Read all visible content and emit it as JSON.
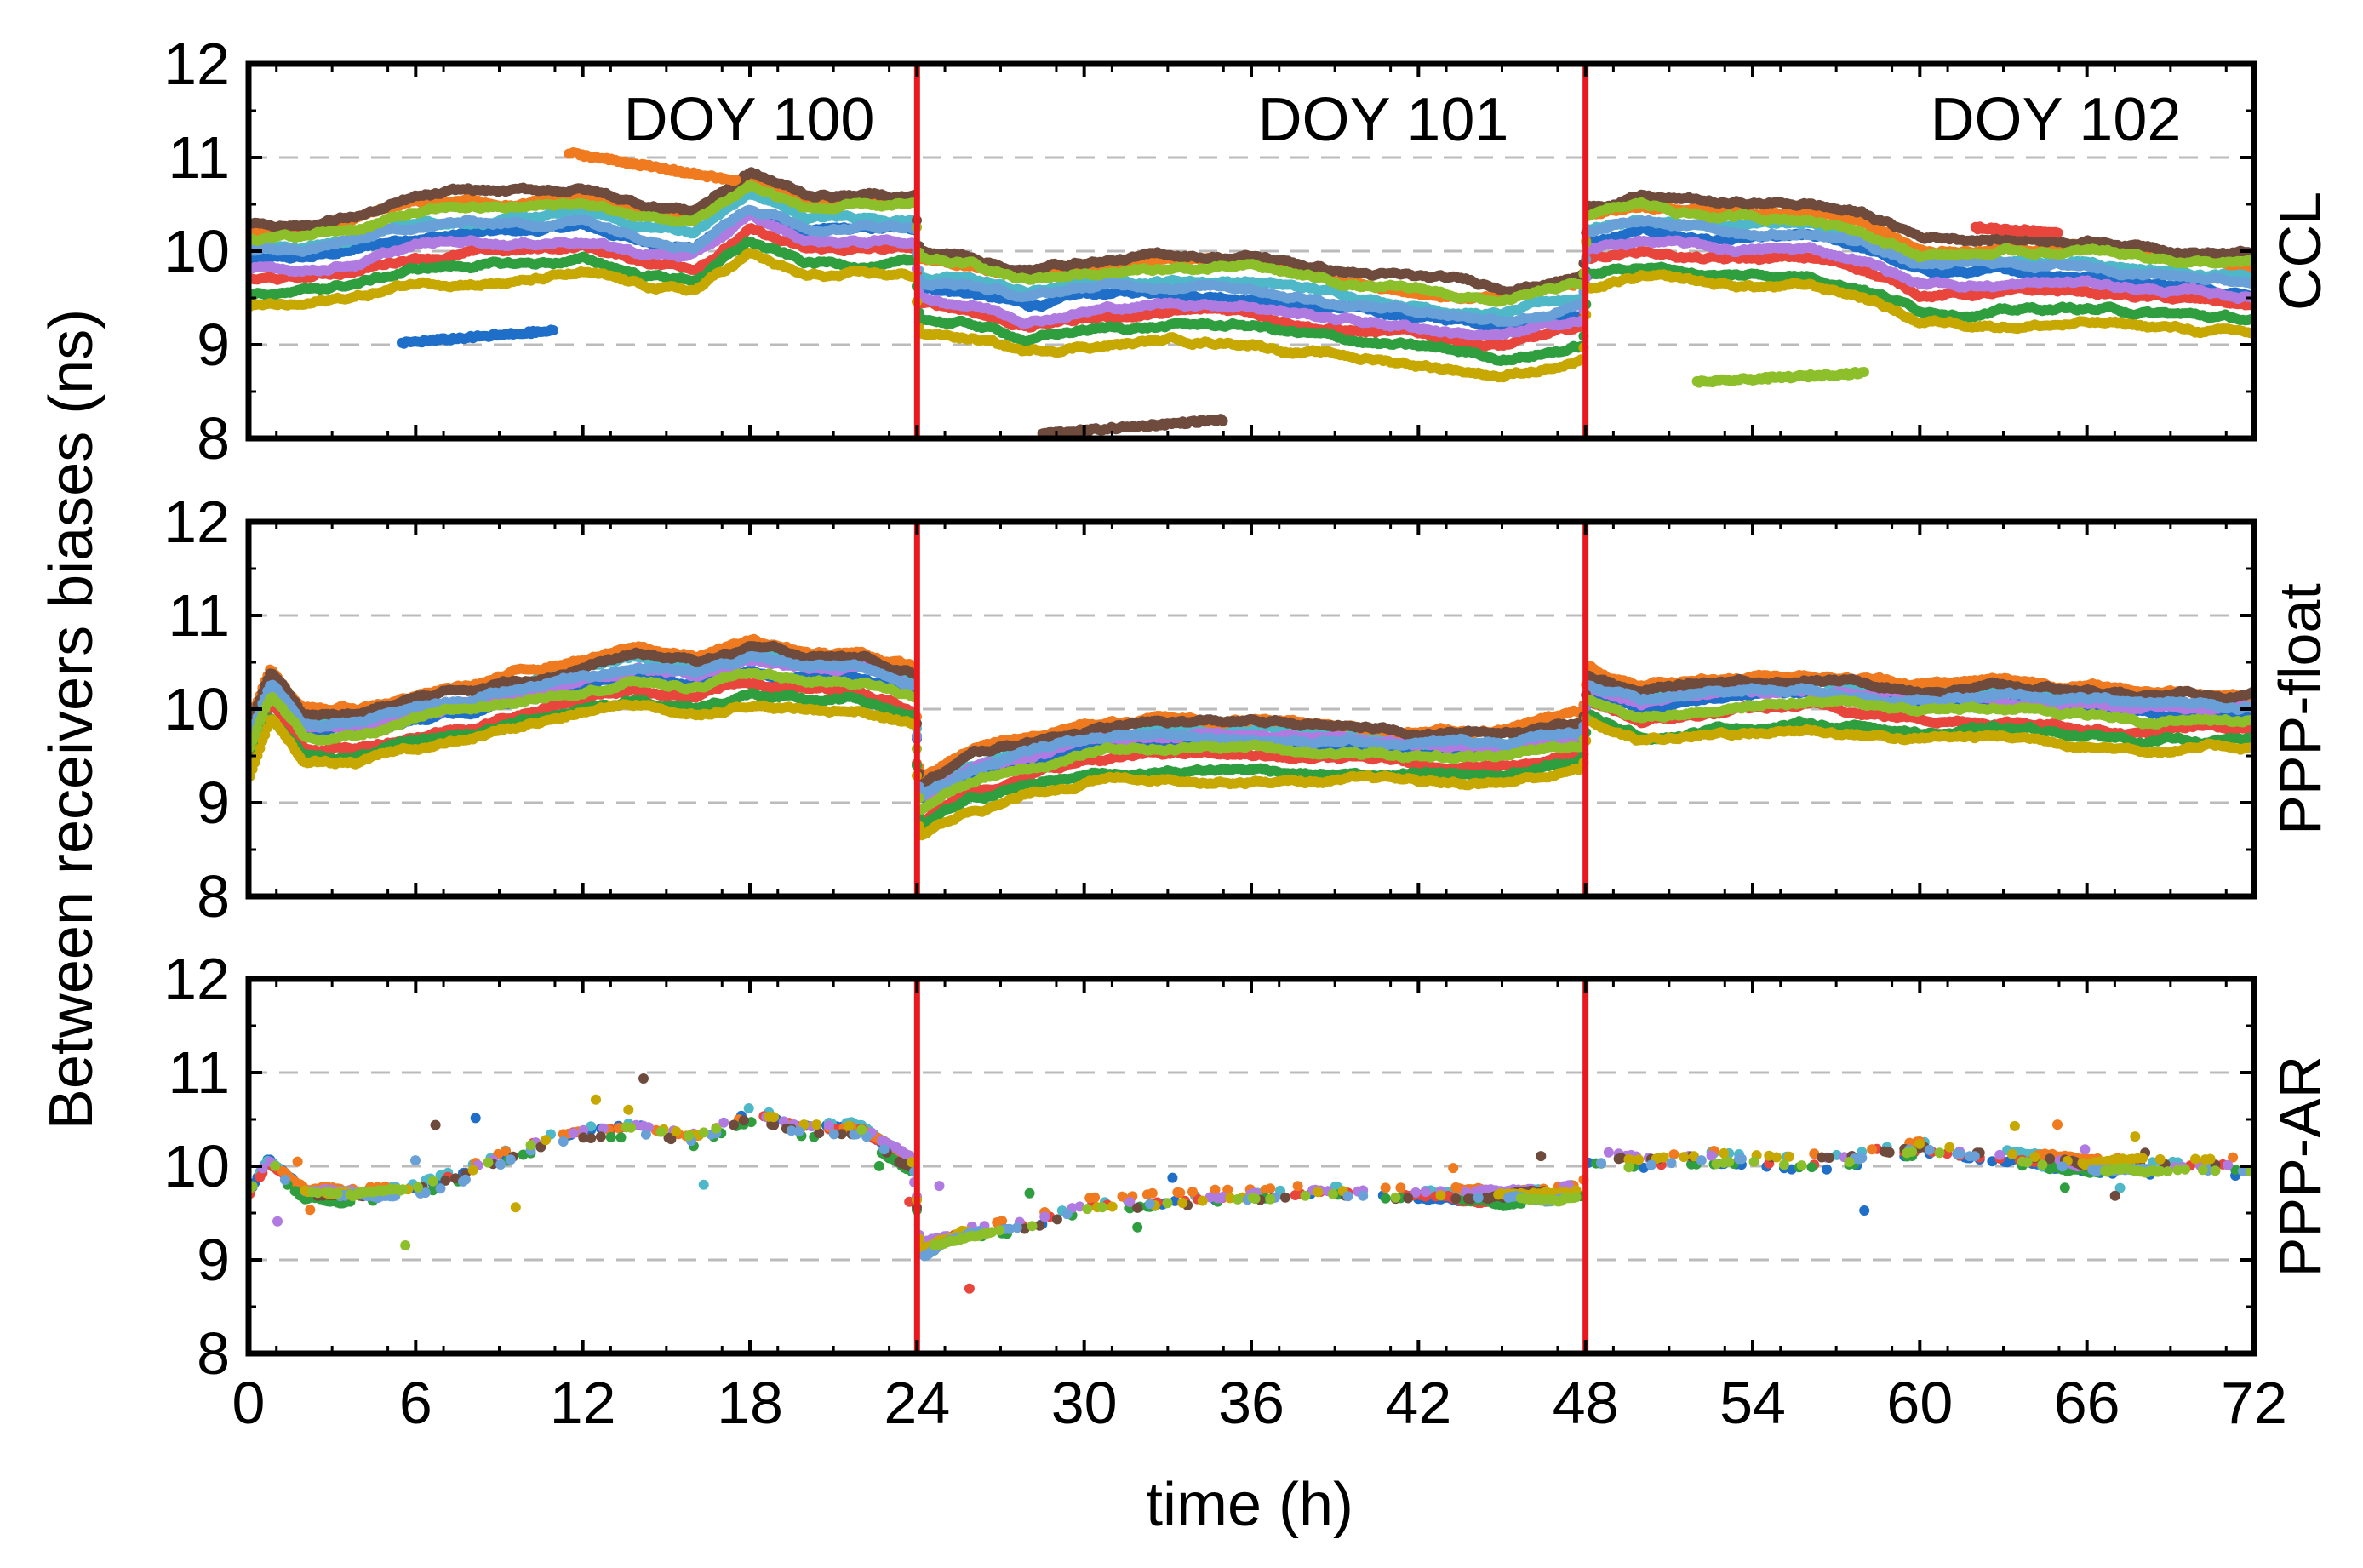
{
  "chart_data": {
    "type": "scatter",
    "ylabel": "Between receivers biases (ns)",
    "xlabel": "time (h)",
    "xlim": [
      0,
      72
    ],
    "ylim": [
      8,
      12
    ],
    "x_ticks": [
      "0",
      "6",
      "12",
      "18",
      "24",
      "30",
      "36",
      "42",
      "48",
      "54",
      "60",
      "66",
      "72"
    ],
    "y_ticks": [
      "8",
      "9",
      "10",
      "11",
      "12"
    ],
    "day_boundaries_h": [
      24,
      48
    ],
    "day_labels": [
      "DOY 100",
      "DOY 101",
      "DOY 102"
    ],
    "panels": [
      {
        "name": "CCL",
        "trend": [
          [
            0,
            9.9
          ],
          [
            2,
            9.9
          ],
          [
            4,
            10.0
          ],
          [
            6,
            10.15
          ],
          [
            8,
            10.2
          ],
          [
            10,
            10.2
          ],
          [
            12,
            10.25
          ],
          [
            14,
            10.1
          ],
          [
            16,
            10.05
          ],
          [
            18,
            10.45
          ],
          [
            20,
            10.2
          ],
          [
            22,
            10.2
          ],
          [
            23.9,
            10.2
          ],
          [
            24.1,
            9.6
          ],
          [
            26,
            9.55
          ],
          [
            28,
            9.4
          ],
          [
            30,
            9.5
          ],
          [
            33,
            9.55
          ],
          [
            36,
            9.55
          ],
          [
            39,
            9.4
          ],
          [
            42,
            9.3
          ],
          [
            45,
            9.2
          ],
          [
            47.9,
            9.35
          ],
          [
            48.1,
            10.1
          ],
          [
            50,
            10.2
          ],
          [
            53,
            10.1
          ],
          [
            56,
            10.1
          ],
          [
            58,
            10.0
          ],
          [
            60,
            9.75
          ],
          [
            63,
            9.75
          ],
          [
            66,
            9.75
          ],
          [
            68,
            9.7
          ],
          [
            72,
            9.6
          ]
        ],
        "offsets": [
          0.0,
          0.15,
          -0.2,
          0.3,
          -0.35,
          -0.1,
          0.4,
          -0.5,
          0.1,
          0.25
        ],
        "segments": [
          {
            "x0": 5.5,
            "x1": 11.0,
            "y0": 9.02,
            "y1": 9.15
          },
          {
            "x0": 11.5,
            "x1": 17.5,
            "y0": 11.05,
            "y1": 10.75
          },
          {
            "x0": 28.5,
            "x1": 35.0,
            "y0": 8.05,
            "y1": 8.2
          },
          {
            "x0": 52.0,
            "x1": 58.0,
            "y0": 8.6,
            "y1": 8.7
          },
          {
            "x0": 62.0,
            "x1": 65.0,
            "y0": 10.25,
            "y1": 10.2
          }
        ]
      },
      {
        "name": "PPP-float",
        "trend": [
          [
            0,
            9.6
          ],
          [
            0.8,
            10.2
          ],
          [
            2,
            9.75
          ],
          [
            4,
            9.75
          ],
          [
            6,
            9.9
          ],
          [
            8,
            10.0
          ],
          [
            10,
            10.15
          ],
          [
            12,
            10.3
          ],
          [
            14,
            10.4
          ],
          [
            16,
            10.3
          ],
          [
            18,
            10.45
          ],
          [
            20,
            10.35
          ],
          [
            22,
            10.35
          ],
          [
            23.9,
            10.2
          ],
          [
            24.1,
            9.0
          ],
          [
            26,
            9.3
          ],
          [
            28,
            9.45
          ],
          [
            30,
            9.6
          ],
          [
            33,
            9.65
          ],
          [
            36,
            9.65
          ],
          [
            39,
            9.6
          ],
          [
            42,
            9.55
          ],
          [
            45,
            9.55
          ],
          [
            47.9,
            9.7
          ],
          [
            48.1,
            10.2
          ],
          [
            50,
            10.0
          ],
          [
            53,
            10.1
          ],
          [
            56,
            10.15
          ],
          [
            58,
            10.1
          ],
          [
            60,
            10.05
          ],
          [
            63,
            10.05
          ],
          [
            66,
            10.0
          ],
          [
            68,
            9.95
          ],
          [
            72,
            9.95
          ]
        ],
        "offsets": [
          0.0,
          0.12,
          -0.15,
          0.25,
          -0.28,
          0.05,
          0.2,
          -0.35,
          0.08,
          -0.05
        ],
        "segments": []
      },
      {
        "name": "PPP-AR",
        "trend": [
          [
            0,
            9.7
          ],
          [
            0.7,
            10.05
          ],
          [
            2,
            9.7
          ],
          [
            4,
            9.7
          ],
          [
            6,
            9.75
          ],
          [
            8,
            9.95
          ],
          [
            10,
            10.2
          ],
          [
            12,
            10.35
          ],
          [
            14,
            10.4
          ],
          [
            16,
            10.3
          ],
          [
            18,
            10.55
          ],
          [
            20,
            10.4
          ],
          [
            22,
            10.4
          ],
          [
            23.9,
            10.0
          ],
          [
            24.1,
            9.1
          ],
          [
            26,
            9.3
          ],
          [
            28,
            9.35
          ],
          [
            30,
            9.55
          ],
          [
            33,
            9.6
          ],
          [
            36,
            9.65
          ],
          [
            39,
            9.7
          ],
          [
            42,
            9.65
          ],
          [
            45,
            9.65
          ],
          [
            47.9,
            9.75
          ],
          [
            48.1,
            10.1
          ],
          [
            50,
            10.05
          ],
          [
            53,
            10.1
          ],
          [
            56,
            10.05
          ],
          [
            58,
            10.1
          ],
          [
            60,
            10.2
          ],
          [
            63,
            10.1
          ],
          [
            66,
            10.0
          ],
          [
            68,
            10.0
          ],
          [
            72,
            10.0
          ]
        ],
        "offsets": [
          0.0,
          0.03,
          -0.03,
          0.05,
          -0.05,
          0.02,
          -0.02,
          0.04,
          -0.04,
          0.01
        ],
        "segments": []
      }
    ],
    "colors": [
      "#1f6fc9",
      "#4fb8c8",
      "#e8463c",
      "#f07a1f",
      "#2e9e3e",
      "#b07be0",
      "#6e4b3c",
      "#c7a800",
      "#6aa0d8",
      "#8cbf2a"
    ],
    "boundary_color": "#e8191e",
    "grid_color": "#bbbbbb"
  }
}
